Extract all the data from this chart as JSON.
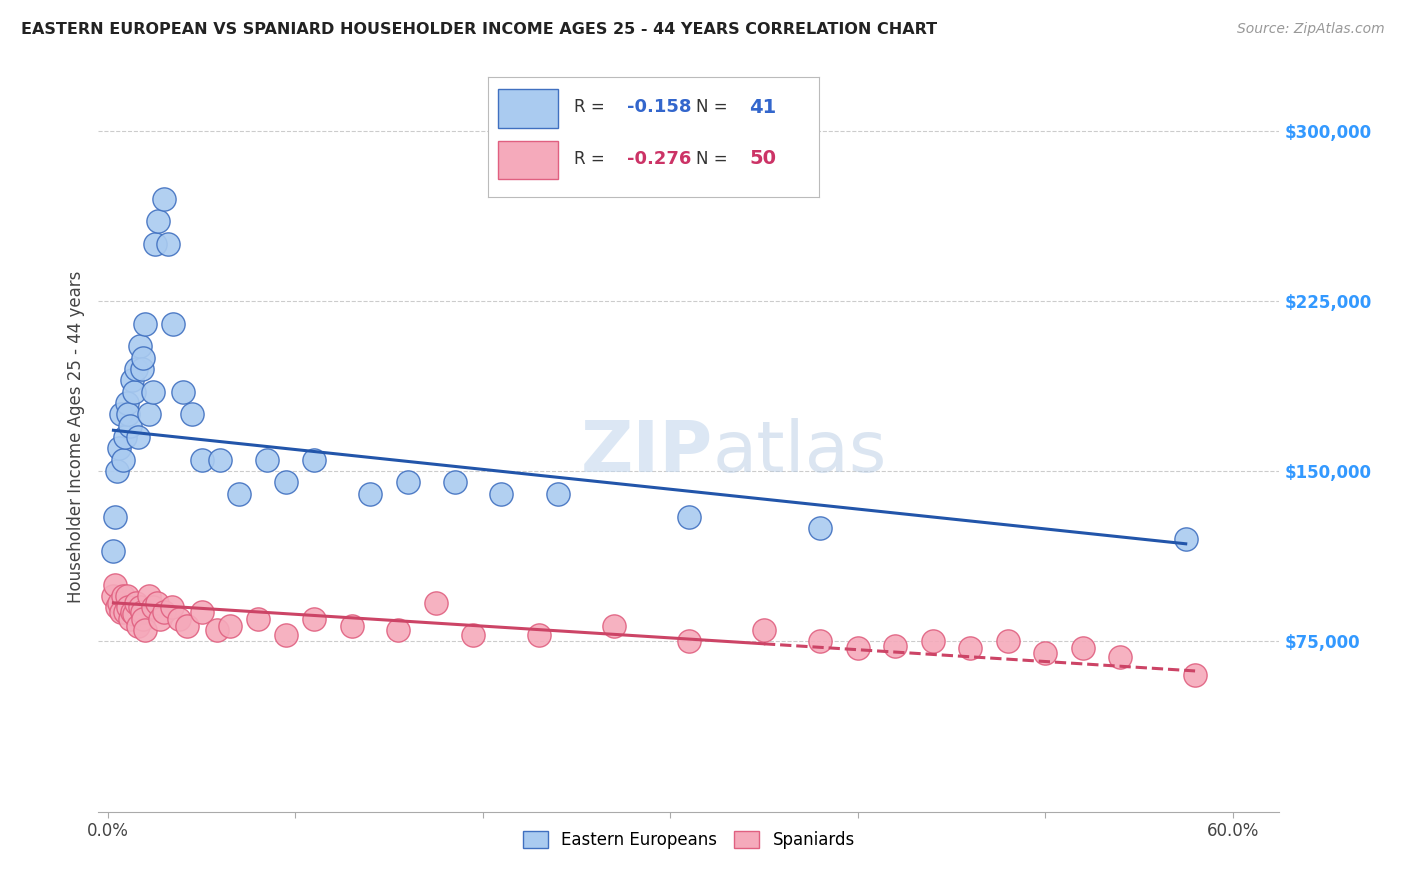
{
  "title": "EASTERN EUROPEAN VS SPANIARD HOUSEHOLDER INCOME AGES 25 - 44 YEARS CORRELATION CHART",
  "source": "Source: ZipAtlas.com",
  "ylabel": "Householder Income Ages 25 - 44 years",
  "xlim": [
    -0.005,
    0.625
  ],
  "ylim": [
    0,
    330000
  ],
  "xticks": [
    0.0,
    0.1,
    0.2,
    0.3,
    0.4,
    0.5,
    0.6
  ],
  "xticklabels": [
    "0.0%",
    "",
    "",
    "",
    "",
    "",
    "60.0%"
  ],
  "yticks_right": [
    75000,
    150000,
    225000,
    300000
  ],
  "ytick_labels_right": [
    "$75,000",
    "$150,000",
    "$225,000",
    "$300,000"
  ],
  "blue_R": "-0.158",
  "blue_N": "41",
  "pink_R": "-0.276",
  "pink_N": "50",
  "blue_color": "#AACBF0",
  "pink_color": "#F5AABB",
  "blue_edge_color": "#4070C0",
  "pink_edge_color": "#E06080",
  "blue_line_color": "#2255AA",
  "pink_line_color": "#CC4466",
  "watermark": "ZIPatlas",
  "background_color": "#ffffff",
  "grid_color": "#cccccc",
  "eastern_x": [
    0.003,
    0.004,
    0.005,
    0.006,
    0.007,
    0.008,
    0.009,
    0.01,
    0.011,
    0.012,
    0.013,
    0.014,
    0.015,
    0.016,
    0.017,
    0.018,
    0.019,
    0.02,
    0.022,
    0.024,
    0.025,
    0.027,
    0.03,
    0.032,
    0.035,
    0.04,
    0.045,
    0.05,
    0.06,
    0.07,
    0.085,
    0.095,
    0.11,
    0.14,
    0.16,
    0.185,
    0.21,
    0.24,
    0.31,
    0.38,
    0.575
  ],
  "eastern_y": [
    115000,
    130000,
    150000,
    160000,
    175000,
    155000,
    165000,
    180000,
    175000,
    170000,
    190000,
    185000,
    195000,
    165000,
    205000,
    195000,
    200000,
    215000,
    175000,
    185000,
    250000,
    260000,
    270000,
    250000,
    215000,
    185000,
    175000,
    155000,
    155000,
    140000,
    155000,
    145000,
    155000,
    140000,
    145000,
    145000,
    140000,
    140000,
    130000,
    125000,
    120000
  ],
  "spaniard_x": [
    0.003,
    0.004,
    0.005,
    0.006,
    0.007,
    0.008,
    0.009,
    0.01,
    0.011,
    0.012,
    0.013,
    0.014,
    0.015,
    0.016,
    0.017,
    0.018,
    0.019,
    0.02,
    0.022,
    0.024,
    0.026,
    0.028,
    0.03,
    0.034,
    0.038,
    0.042,
    0.05,
    0.058,
    0.065,
    0.08,
    0.095,
    0.11,
    0.13,
    0.155,
    0.175,
    0.195,
    0.23,
    0.27,
    0.31,
    0.35,
    0.38,
    0.4,
    0.42,
    0.44,
    0.46,
    0.48,
    0.5,
    0.52,
    0.54,
    0.58
  ],
  "spaniard_y": [
    95000,
    100000,
    90000,
    92000,
    88000,
    95000,
    88000,
    95000,
    90000,
    85000,
    88000,
    87000,
    92000,
    82000,
    90000,
    88000,
    85000,
    80000,
    95000,
    90000,
    92000,
    85000,
    88000,
    90000,
    85000,
    82000,
    88000,
    80000,
    82000,
    85000,
    78000,
    85000,
    82000,
    80000,
    92000,
    78000,
    78000,
    82000,
    75000,
    80000,
    75000,
    72000,
    73000,
    75000,
    72000,
    75000,
    70000,
    72000,
    68000,
    60000
  ],
  "blue_trend_x": [
    0.003,
    0.575
  ],
  "blue_trend_y": [
    168000,
    118000
  ],
  "pink_trend_x": [
    0.003,
    0.58
  ],
  "pink_trend_y": [
    92000,
    62000
  ],
  "pink_trend_dashed_start": 0.35
}
